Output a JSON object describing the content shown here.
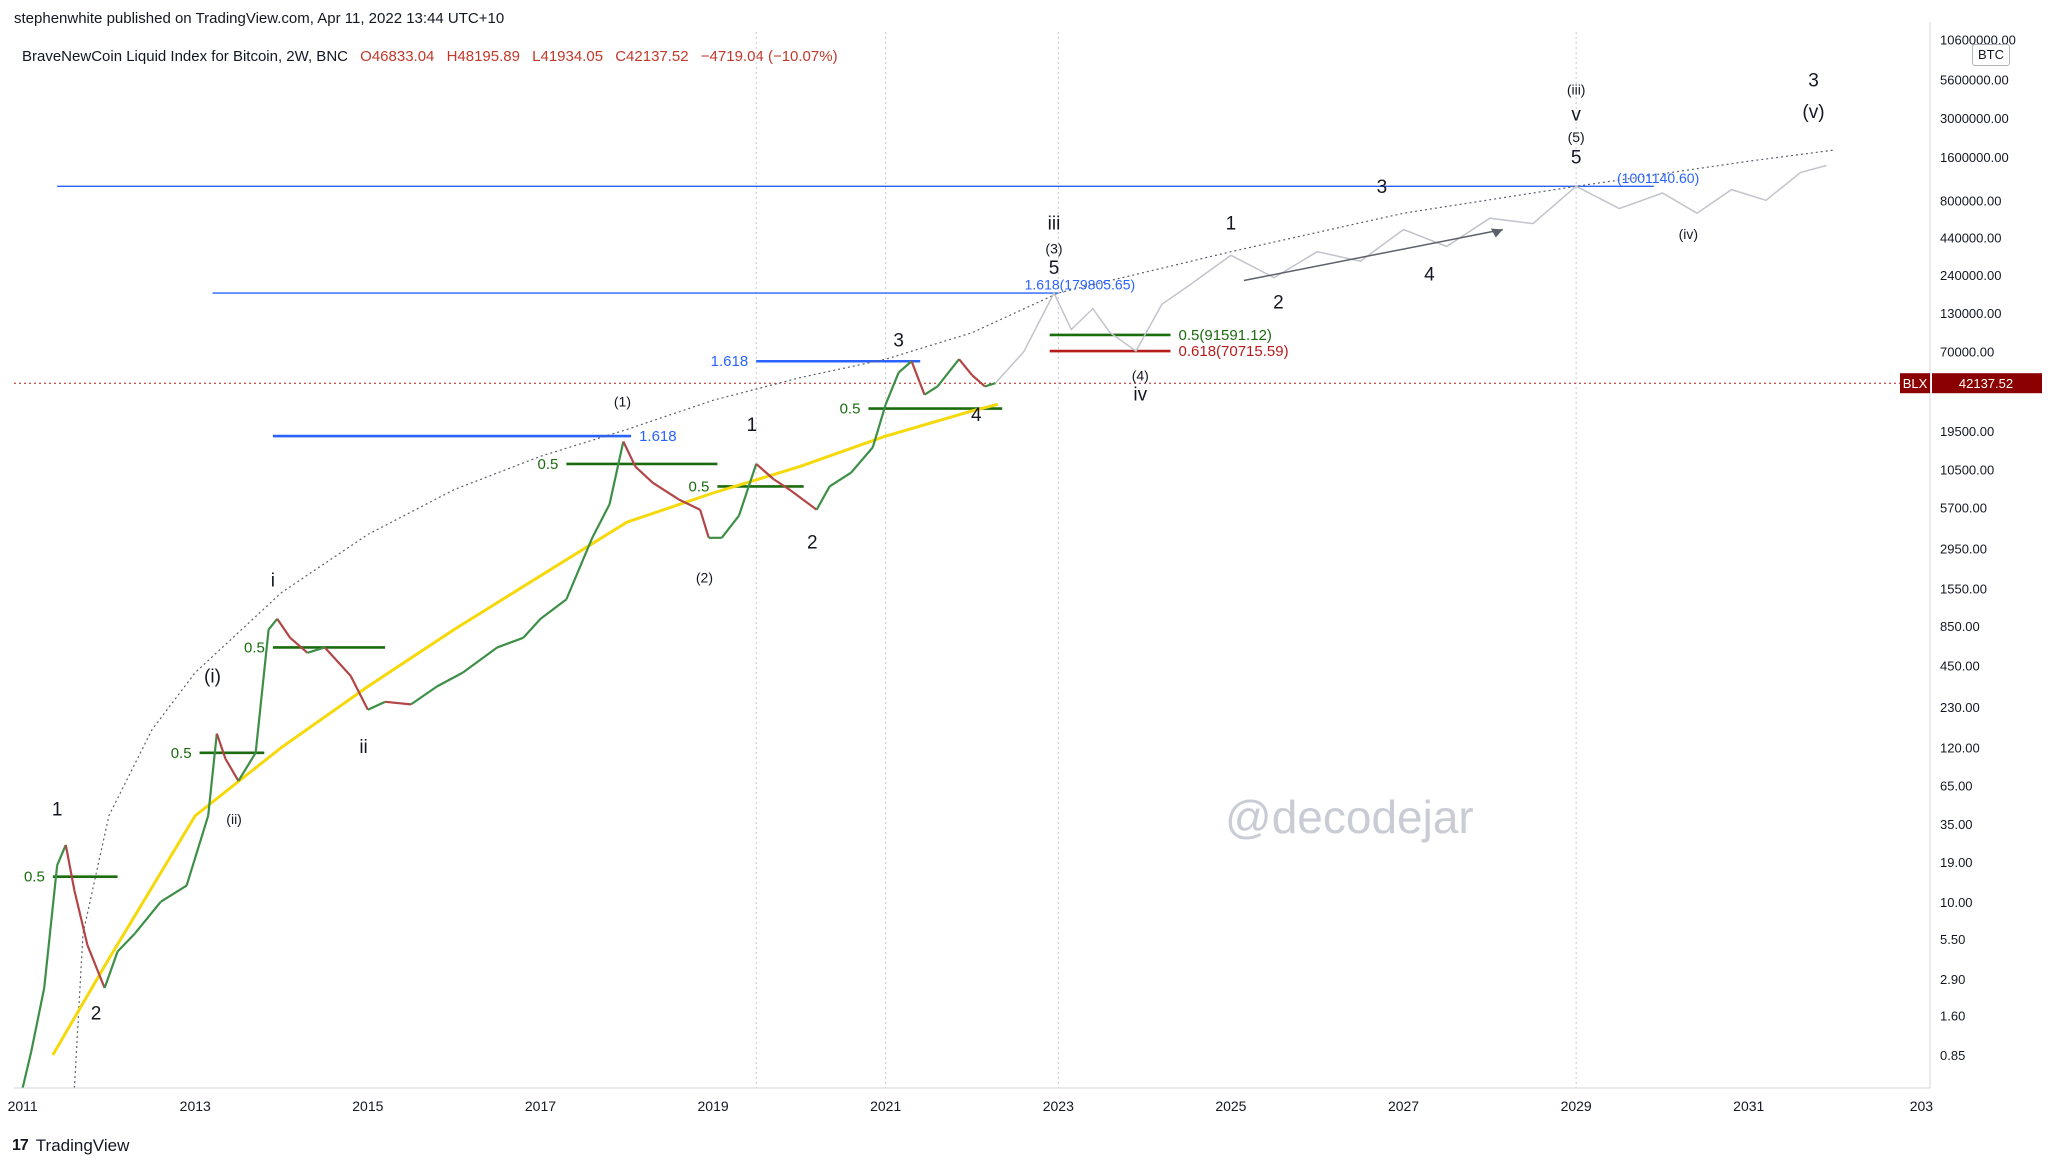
{
  "header": {
    "publisher": "stephenwhite published on TradingView.com, Apr 11, 2022 13:44 UTC+10",
    "symbol": "BraveNewCoin Liquid Index for Bitcoin, 2W, BNC",
    "open": "O46833.04",
    "high": "H48195.89",
    "low": "L41934.05",
    "close": "C42137.52",
    "change": "−4719.04 (−10.07%)"
  },
  "footer": {
    "brand": "TradingView"
  },
  "watermark": "@decodejar",
  "currency_badge": "BTC",
  "price_tag": {
    "symbol": "BLX",
    "value": "42137.52"
  },
  "chart_data": {
    "type": "line",
    "title": "BraveNewCoin Liquid Index for Bitcoin, 2W, BNC",
    "y_scale": "log",
    "ylim": [
      0.5,
      12000000
    ],
    "xlim": [
      2010.9,
      2033.1
    ],
    "x_ticks": [
      "2011",
      "2013",
      "2015",
      "2017",
      "2019",
      "2021",
      "2023",
      "2025",
      "2027",
      "2029",
      "2031",
      "203"
    ],
    "y_ticks": [
      "10600000.00",
      "5600000.00",
      "3000000.00",
      "1600000.00",
      "800000.00",
      "440000.00",
      "240000.00",
      "130000.00",
      "70000.00",
      "19500.00",
      "10500.00",
      "5700.00",
      "2950.00",
      "1550.00",
      "850.00",
      "450.00",
      "230.00",
      "120.00",
      "65.00",
      "35.00",
      "19.00",
      "10.00",
      "5.50",
      "2.90",
      "1.60",
      "0.85"
    ],
    "colors": {
      "trend": "#f5d90a",
      "fib_blue": "#2962ff",
      "fib_green": "#1b6b0f",
      "fib_red": "#b71c1c",
      "up": "#3d8f47",
      "down": "#b24545"
    },
    "price_path": [
      [
        2011.0,
        0.5
      ],
      [
        2011.1,
        0.9
      ],
      [
        2011.25,
        2.5
      ],
      [
        2011.4,
        18
      ],
      [
        2011.5,
        25
      ],
      [
        2011.6,
        12
      ],
      [
        2011.75,
        5
      ],
      [
        2011.95,
        2.5
      ],
      [
        2012.1,
        4.5
      ],
      [
        2012.3,
        6
      ],
      [
        2012.6,
        10
      ],
      [
        2012.9,
        13
      ],
      [
        2013.15,
        40
      ],
      [
        2013.25,
        150
      ],
      [
        2013.35,
        100
      ],
      [
        2013.5,
        70
      ],
      [
        2013.7,
        110
      ],
      [
        2013.85,
        800
      ],
      [
        2013.95,
        950
      ],
      [
        2014.1,
        700
      ],
      [
        2014.3,
        550
      ],
      [
        2014.5,
        600
      ],
      [
        2014.8,
        380
      ],
      [
        2015.0,
        220
      ],
      [
        2015.2,
        250
      ],
      [
        2015.5,
        240
      ],
      [
        2015.8,
        320
      ],
      [
        2016.1,
        400
      ],
      [
        2016.5,
        600
      ],
      [
        2016.8,
        700
      ],
      [
        2017.0,
        950
      ],
      [
        2017.3,
        1300
      ],
      [
        2017.6,
        3500
      ],
      [
        2017.8,
        6000
      ],
      [
        2017.96,
        16500
      ],
      [
        2018.1,
        11000
      ],
      [
        2018.3,
        8500
      ],
      [
        2018.6,
        6500
      ],
      [
        2018.85,
        5500
      ],
      [
        2018.95,
        3500
      ],
      [
        2019.1,
        3500
      ],
      [
        2019.3,
        5000
      ],
      [
        2019.5,
        11500
      ],
      [
        2019.7,
        9000
      ],
      [
        2019.9,
        7500
      ],
      [
        2020.2,
        5500
      ],
      [
        2020.35,
        8000
      ],
      [
        2020.6,
        10000
      ],
      [
        2020.85,
        15000
      ],
      [
        2021.0,
        30000
      ],
      [
        2021.15,
        50000
      ],
      [
        2021.3,
        60000
      ],
      [
        2021.45,
        35000
      ],
      [
        2021.6,
        40000
      ],
      [
        2021.85,
        62000
      ],
      [
        2022.0,
        48000
      ],
      [
        2022.15,
        40000
      ],
      [
        2022.27,
        42137.52
      ]
    ],
    "trend_curve": [
      [
        2011.35,
        0.85
      ],
      [
        2012.0,
        4
      ],
      [
        2013.0,
        40
      ],
      [
        2014.0,
        120
      ],
      [
        2015.0,
        320
      ],
      [
        2016.0,
        800
      ],
      [
        2017.0,
        1900
      ],
      [
        2018.0,
        4500
      ],
      [
        2019.0,
        7200
      ],
      [
        2020.0,
        11000
      ],
      [
        2021.0,
        18000
      ],
      [
        2022.0,
        27000
      ],
      [
        2022.3,
        30000
      ]
    ],
    "upper_curve": [
      [
        2011.6,
        0.5
      ],
      [
        2011.7,
        6
      ],
      [
        2012.0,
        40
      ],
      [
        2012.5,
        160
      ],
      [
        2013.0,
        400
      ],
      [
        2014.0,
        1450
      ],
      [
        2015.0,
        3700
      ],
      [
        2016.0,
        7600
      ],
      [
        2017.0,
        13000
      ],
      [
        2018.0,
        20000
      ],
      [
        2019.0,
        32000
      ],
      [
        2020.0,
        46000
      ],
      [
        2021.0,
        62000
      ],
      [
        2022.0,
        95000
      ],
      [
        2023.0,
        180000
      ],
      [
        2025.0,
        350000
      ],
      [
        2027.0,
        650000
      ],
      [
        2029.0,
        1001140
      ],
      [
        2031.0,
        1500000
      ],
      [
        2032.0,
        1800000
      ]
    ],
    "projection_path": [
      [
        2022.27,
        42137
      ],
      [
        2022.6,
        70000
      ],
      [
        2022.95,
        179805
      ],
      [
        2023.15,
        100000
      ],
      [
        2023.4,
        140000
      ],
      [
        2023.6,
        95000
      ],
      [
        2023.9,
        70715
      ],
      [
        2024.2,
        150000
      ],
      [
        2024.5,
        200000
      ],
      [
        2025.0,
        330000
      ],
      [
        2025.5,
        230000
      ],
      [
        2026.0,
        350000
      ],
      [
        2026.5,
        300000
      ],
      [
        2027.0,
        500000
      ],
      [
        2027.5,
        380000
      ],
      [
        2028.0,
        600000
      ],
      [
        2028.5,
        550000
      ],
      [
        2029.0,
        1001140
      ],
      [
        2029.5,
        700000
      ],
      [
        2030.0,
        900000
      ],
      [
        2030.4,
        650000
      ],
      [
        2030.8,
        950000
      ],
      [
        2031.2,
        800000
      ],
      [
        2031.6,
        1250000
      ],
      [
        2031.9,
        1400000
      ]
    ],
    "horizontal_levels": [
      {
        "label": "",
        "value": 1001140.6,
        "x_from": 2011.4,
        "x_to": 2029.9,
        "color": "#2962ff"
      },
      {
        "label": "",
        "value": 179805.65,
        "x_from": 2013.2,
        "x_to": 2023.0,
        "color": "#2962ff"
      },
      {
        "label": "1.618",
        "value": 60000,
        "x_from": 2019.5,
        "x_to": 2021.4,
        "color": "#2962ff"
      },
      {
        "label": "1.618",
        "value": 18000,
        "x_from": 2013.9,
        "x_to": 2018.05,
        "color": "#2962ff"
      },
      {
        "label": "0.5",
        "value": 28000,
        "x_from": 2020.8,
        "x_to": 2022.35,
        "color": "#1b6b0f"
      },
      {
        "label": "0.5",
        "value": 11500,
        "x_from": 2017.3,
        "x_to": 2019.05,
        "color": "#1b6b0f"
      },
      {
        "label": "0.5",
        "value": 8000,
        "x_from": 2019.05,
        "x_to": 2020.05,
        "color": "#1b6b0f"
      },
      {
        "label": "0.5",
        "value": 600,
        "x_from": 2013.9,
        "x_to": 2015.2,
        "color": "#1b6b0f"
      },
      {
        "label": "0.5",
        "value": 110,
        "x_from": 2013.05,
        "x_to": 2013.8,
        "color": "#1b6b0f"
      },
      {
        "label": "0.5",
        "value": 15,
        "x_from": 2011.35,
        "x_to": 2012.1,
        "color": "#1b6b0f"
      },
      {
        "label": "0.5(91591.12)",
        "value": 91591.12,
        "x_from": 2022.9,
        "x_to": 2024.3,
        "color": "#1b6b0f"
      },
      {
        "label": "0.618(70715.59)",
        "value": 70715.59,
        "x_from": 2022.9,
        "x_to": 2024.3,
        "color": "#b71c1c"
      }
    ],
    "annotations": [
      {
        "text": "1.618(179805.65)",
        "x": 2023.25,
        "y": 190000,
        "color": "#2962ff"
      },
      {
        "text": "(1001140.60)",
        "x": 2029.95,
        "y": 1060000,
        "color": "#2962ff"
      },
      {
        "text": "1",
        "x": 2011.4,
        "y": 40,
        "color": "#131722"
      },
      {
        "text": "2",
        "x": 2011.85,
        "y": 1.5,
        "color": "#131722"
      },
      {
        "text": "(i)",
        "x": 2013.2,
        "y": 340,
        "color": "#131722"
      },
      {
        "text": "(ii)",
        "x": 2013.45,
        "y": 35,
        "color": "#131722"
      },
      {
        "text": "i",
        "x": 2013.9,
        "y": 1600,
        "color": "#131722"
      },
      {
        "text": "ii",
        "x": 2014.95,
        "y": 110,
        "color": "#131722"
      },
      {
        "text": "(1)",
        "x": 2017.95,
        "y": 29000,
        "color": "#131722"
      },
      {
        "text": "(2)",
        "x": 2018.9,
        "y": 1700,
        "color": "#131722"
      },
      {
        "text": "1",
        "x": 2019.45,
        "y": 19500,
        "color": "#131722"
      },
      {
        "text": "2",
        "x": 2020.15,
        "y": 2950,
        "color": "#131722"
      },
      {
        "text": "3",
        "x": 2021.15,
        "y": 76000,
        "color": "#131722"
      },
      {
        "text": "4",
        "x": 2022.05,
        "y": 23000,
        "color": "#131722"
      },
      {
        "text": "iii",
        "x": 2022.95,
        "y": 500000,
        "color": "#131722"
      },
      {
        "text": "(3)",
        "x": 2022.95,
        "y": 340000,
        "color": "#131722"
      },
      {
        "text": "5",
        "x": 2022.95,
        "y": 245000,
        "color": "#131722"
      },
      {
        "text": "(4)",
        "x": 2023.95,
        "y": 44000,
        "color": "#131722"
      },
      {
        "text": "iv",
        "x": 2023.95,
        "y": 32000,
        "color": "#131722"
      },
      {
        "text": "1",
        "x": 2025.0,
        "y": 500000,
        "color": "#131722"
      },
      {
        "text": "2",
        "x": 2025.55,
        "y": 140000,
        "color": "#131722"
      },
      {
        "text": "3",
        "x": 2026.75,
        "y": 900000,
        "color": "#131722"
      },
      {
        "text": "4",
        "x": 2027.3,
        "y": 220000,
        "color": "#131722"
      },
      {
        "text": "(iii)",
        "x": 2029.0,
        "y": 4400000,
        "color": "#131722"
      },
      {
        "text": "v",
        "x": 2029.0,
        "y": 2900000,
        "color": "#131722"
      },
      {
        "text": "(5)",
        "x": 2029.0,
        "y": 2050000,
        "color": "#131722"
      },
      {
        "text": "5",
        "x": 2029.0,
        "y": 1450000,
        "color": "#131722"
      },
      {
        "text": "(iv)",
        "x": 2030.3,
        "y": 430000,
        "color": "#131722"
      },
      {
        "text": "3",
        "x": 2031.75,
        "y": 5000000,
        "color": "#131722"
      },
      {
        "text": "(v)",
        "x": 2031.75,
        "y": 3000000,
        "color": "#131722"
      }
    ]
  }
}
